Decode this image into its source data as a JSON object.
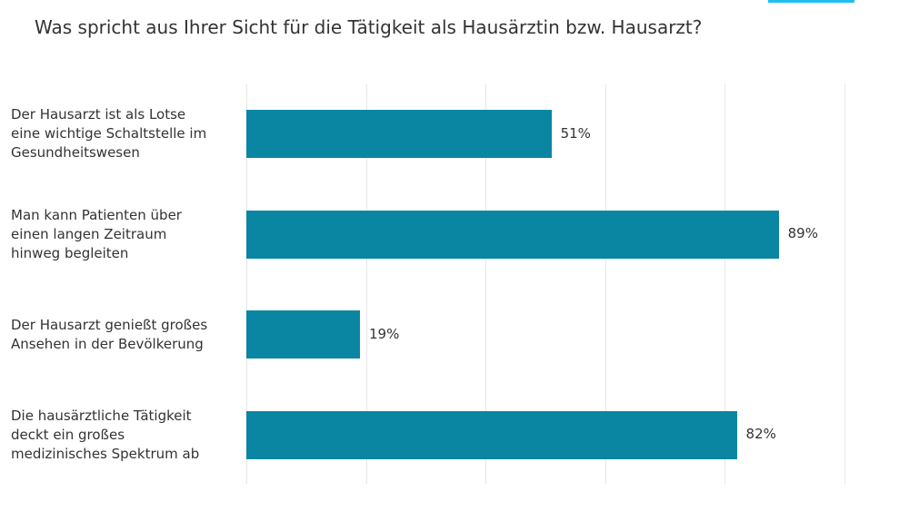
{
  "colors": {
    "bar": "#0a86a3",
    "grid": "#e6e6e6",
    "accent": "#1ec0f0"
  },
  "chart_data": {
    "type": "bar",
    "orientation": "horizontal",
    "title": "Was spricht aus Ihrer Sicht für die Tätigkeit als Hausärztin bzw. Hausarzt?",
    "categories": [
      "Der Hausarzt ist als Lotse eine wichtige Schaltstelle im Gesundheitswesen",
      "Man kann Patienten über einen langen Zeitraum hinweg begleiten",
      "Der Hausarzt genießt großes Ansehen in der Bevölkerung",
      "Die hausärztliche Tätigkeit deckt ein großes medizinisches Spektrum ab"
    ],
    "category_lines": [
      [
        "Der Hausarzt ist als Lotse",
        "eine wichtige Schaltstelle im",
        "Gesundheitswesen"
      ],
      [
        "Man kann Patienten über",
        "einen langen Zeitraum",
        "hinweg begleiten"
      ],
      [
        "Der Hausarzt genießt großes",
        "Ansehen in der Bevölkerung"
      ],
      [
        "Die hausärztliche Tätigkeit",
        "deckt ein großes",
        "medizinisches Spektrum ab"
      ]
    ],
    "values": [
      51,
      89,
      19,
      82
    ],
    "value_labels": [
      "51%",
      "89%",
      "19%",
      "82%"
    ],
    "xlim": [
      0,
      100
    ],
    "grid_ticks": [
      0,
      20,
      40,
      60,
      80,
      100
    ],
    "grid": true,
    "xlabel": "",
    "ylabel": ""
  }
}
